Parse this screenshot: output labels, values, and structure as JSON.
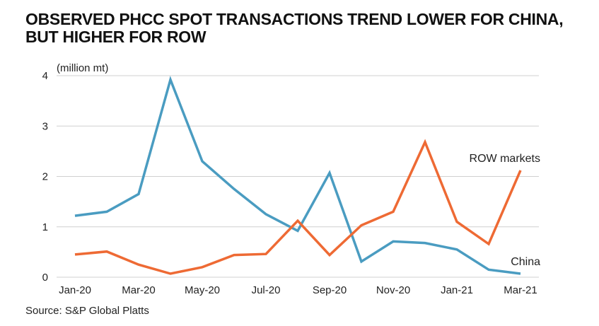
{
  "title": {
    "line1": "OBSERVED PHCC SPOT TRANSACTIONS TREND LOWER FOR CHINA,",
    "line2": "BUT HIGHER FOR ROW"
  },
  "source": "Source: S&P Global Platts",
  "colors": {
    "china": "#4a9cc1",
    "row": "#ee6a34",
    "grid": "#d0d0d0",
    "text": "#222222"
  },
  "chart_data": {
    "type": "line",
    "ylabel": "(million mt)",
    "ylim": [
      0,
      4
    ],
    "yticks": [
      "0",
      "1",
      "2",
      "3",
      "4"
    ],
    "grid": "horizontal",
    "x": [
      "Jan-20",
      "Feb-20",
      "Mar-20",
      "Apr-20",
      "May-20",
      "Jun-20",
      "Jul-20",
      "Aug-20",
      "Sep-20",
      "Oct-20",
      "Nov-20",
      "Dec-20",
      "Jan-21",
      "Feb-21",
      "Mar-21"
    ],
    "xtick_labels": [
      "Jan-20",
      "Mar-20",
      "May-20",
      "Jul-20",
      "Sep-20",
      "Nov-20",
      "Jan-21",
      "Mar-21"
    ],
    "series": [
      {
        "name": "China",
        "color": "#4a9cc1",
        "values": [
          1.22,
          1.3,
          1.65,
          3.92,
          2.3,
          1.75,
          1.25,
          0.92,
          2.07,
          0.31,
          0.71,
          0.68,
          0.55,
          0.15,
          0.07
        ]
      },
      {
        "name": "ROW markets",
        "color": "#ee6a34",
        "values": [
          0.45,
          0.51,
          0.25,
          0.07,
          0.2,
          0.44,
          0.46,
          1.12,
          0.44,
          1.03,
          1.3,
          2.68,
          1.1,
          0.66,
          2.12
        ]
      }
    ]
  }
}
